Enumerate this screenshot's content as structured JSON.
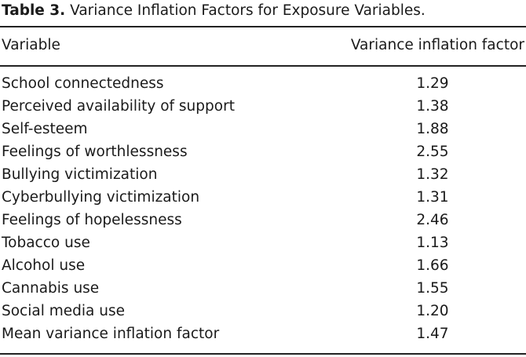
{
  "table": {
    "caption_label": "Table 3.",
    "caption_text": "Variance Inflation Factors for Exposure Variables.",
    "headers": {
      "variable": "Variable",
      "vif": "Variance inflation factor"
    },
    "rows": [
      {
        "variable": "School connectedness",
        "vif": "1.29"
      },
      {
        "variable": "Perceived availability of support",
        "vif": "1.38"
      },
      {
        "variable": "Self-esteem",
        "vif": "1.88"
      },
      {
        "variable": "Feelings of worthlessness",
        "vif": "2.55"
      },
      {
        "variable": "Bullying victimization",
        "vif": "1.32"
      },
      {
        "variable": "Cyberbullying victimization",
        "vif": "1.31"
      },
      {
        "variable": "Feelings of hopelessness",
        "vif": "2.46"
      },
      {
        "variable": "Tobacco use",
        "vif": "1.13"
      },
      {
        "variable": "Alcohol use",
        "vif": "1.66"
      },
      {
        "variable": "Cannabis use",
        "vif": "1.55"
      },
      {
        "variable": "Social media use",
        "vif": "1.20"
      },
      {
        "variable": "Mean variance inflation factor",
        "vif": "1.47"
      }
    ]
  }
}
